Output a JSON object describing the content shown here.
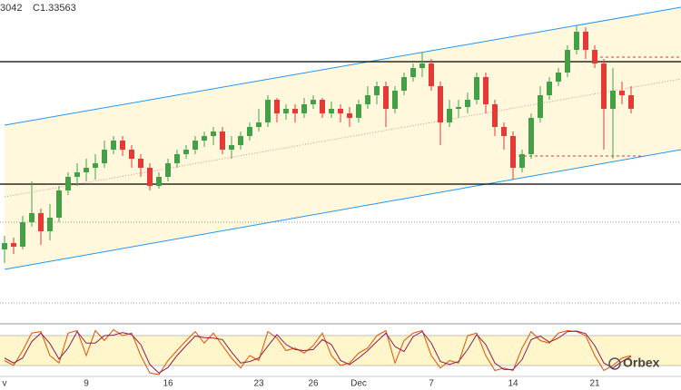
{
  "chart_data": {
    "type": "candlestick",
    "header": [
      "3042",
      "C1.33563"
    ],
    "watermark": "Orbex",
    "categories": [
      "v",
      null,
      null,
      null,
      null,
      null,
      null,
      null,
      null,
      "9",
      null,
      null,
      null,
      null,
      null,
      null,
      null,
      null,
      "16",
      null,
      null,
      null,
      null,
      null,
      null,
      null,
      null,
      null,
      "23",
      null,
      null,
      null,
      null,
      null,
      "26",
      null,
      null,
      null,
      null,
      "Dec",
      null,
      null,
      null,
      null,
      null,
      null,
      null,
      "7",
      null,
      null,
      null,
      null,
      null,
      null,
      null,
      null,
      "14",
      null,
      null,
      null,
      null,
      null,
      null,
      null,
      null,
      "21",
      null,
      null,
      null,
      null
    ],
    "open": [
      1.2891,
      1.2912,
      1.29,
      1.2981,
      1.3011,
      1.2951,
      1.2996,
      1.3086,
      1.3131,
      1.3146,
      1.3161,
      1.3176,
      1.3221,
      1.3251,
      1.3221,
      1.3191,
      1.3161,
      1.3101,
      1.3131,
      1.3176,
      1.3206,
      1.3221,
      1.3251,
      1.3266,
      1.3281,
      1.3221,
      1.3236,
      1.3266,
      1.3296,
      1.3311,
      1.3386,
      1.3341,
      1.3356,
      1.3341,
      1.3371,
      1.3386,
      1.3341,
      1.3356,
      1.3341,
      1.3326,
      1.3371,
      1.3401,
      1.3431,
      1.3356,
      1.3416,
      1.3461,
      1.3491,
      1.3506,
      1.3431,
      1.3311,
      1.3356,
      1.3362,
      1.3386,
      1.3461,
      1.3371,
      1.3296,
      1.3266,
      1.3161,
      1.3206,
      1.3326,
      1.3401,
      1.3446,
      1.3476,
      1.3551,
      1.3611,
      1.3551,
      1.3506,
      1.3356,
      1.3416,
      1.3401
    ],
    "high": [
      1.2936,
      1.293,
      1.3002,
      1.3116,
      1.3026,
      1.3041,
      1.3101,
      1.3146,
      1.3176,
      1.3191,
      1.3206,
      1.3251,
      1.3266,
      1.3266,
      1.3236,
      1.3206,
      1.3176,
      1.3146,
      1.3191,
      1.3221,
      1.3236,
      1.3266,
      1.3281,
      1.3296,
      1.3296,
      1.3266,
      1.3281,
      1.3311,
      1.3356,
      1.3401,
      1.3392,
      1.3371,
      1.3371,
      1.3392,
      1.3401,
      1.3392,
      1.338,
      1.3371,
      1.3362,
      1.3386,
      1.3431,
      1.3446,
      1.3446,
      1.3431,
      1.3476,
      1.3506,
      1.3542,
      1.3521,
      1.3446,
      1.3386,
      1.3386,
      1.341,
      1.3476,
      1.3476,
      1.3386,
      1.3311,
      1.3281,
      1.3221,
      1.3341,
      1.3431,
      1.3461,
      1.3491,
      1.3566,
      1.3632,
      1.3626,
      1.3566,
      1.3521,
      1.3491,
      1.3446,
      1.3431
    ],
    "low": [
      1.2846,
      1.2876,
      1.2891,
      1.2966,
      1.2906,
      1.2921,
      1.2981,
      1.3071,
      1.3101,
      1.3116,
      1.3122,
      1.3161,
      1.3206,
      1.32,
      1.3161,
      1.3131,
      1.3086,
      1.3092,
      1.3116,
      1.3161,
      1.3191,
      1.3206,
      1.323,
      1.3236,
      1.3206,
      1.3191,
      1.3221,
      1.3251,
      1.3281,
      1.3296,
      1.3311,
      1.332,
      1.3311,
      1.3326,
      1.3356,
      1.3326,
      1.3326,
      1.3311,
      1.3296,
      1.3311,
      1.3356,
      1.3371,
      1.3296,
      1.3341,
      1.3401,
      1.3446,
      1.3461,
      1.3416,
      1.3236,
      1.3296,
      1.3326,
      1.3341,
      1.3371,
      1.3341,
      1.3266,
      1.3221,
      1.3122,
      1.3146,
      1.3191,
      1.3311,
      1.3386,
      1.3431,
      1.3461,
      1.3536,
      1.3521,
      1.3491,
      1.3221,
      1.3191,
      1.3371,
      1.3341
    ],
    "close": [
      1.2912,
      1.29,
      1.2981,
      1.3011,
      1.2951,
      1.2996,
      1.3086,
      1.3131,
      1.3146,
      1.3161,
      1.3176,
      1.3221,
      1.3251,
      1.3221,
      1.3191,
      1.3161,
      1.3101,
      1.3131,
      1.3176,
      1.3206,
      1.3221,
      1.3251,
      1.3266,
      1.3281,
      1.3221,
      1.3236,
      1.3266,
      1.3296,
      1.3311,
      1.3386,
      1.3341,
      1.3356,
      1.3341,
      1.3371,
      1.3386,
      1.3341,
      1.3356,
      1.3341,
      1.3326,
      1.3371,
      1.3401,
      1.3431,
      1.3356,
      1.3416,
      1.3461,
      1.3491,
      1.3506,
      1.3431,
      1.3311,
      1.3356,
      1.3362,
      1.3386,
      1.3461,
      1.3371,
      1.3296,
      1.3266,
      1.3161,
      1.3206,
      1.3326,
      1.3401,
      1.3446,
      1.3476,
      1.3551,
      1.3611,
      1.3551,
      1.3506,
      1.3356,
      1.3416,
      1.3401,
      1.33563
    ],
    "up_color": "#43a047",
    "down_color": "#e53935",
    "ylim": [
      1.2666,
      1.3716
    ],
    "levels": [
      {
        "value": 1.3512,
        "style": "solid"
      },
      {
        "value": 1.3107,
        "style": "solid"
      },
      {
        "value": 1.2981,
        "style": "dotted"
      },
      {
        "value": 1.2714,
        "style": "dotted"
      }
    ],
    "oscillator": {
      "ylim": [
        0,
        100
      ],
      "bands": [
        20,
        80
      ],
      "series": [
        {
          "color": "#e65100",
          "values": [
            30,
            20,
            50,
            85,
            88,
            40,
            25,
            85,
            90,
            40,
            90,
            70,
            92,
            80,
            85,
            40,
            5,
            2,
            30,
            50,
            70,
            88,
            65,
            85,
            60,
            35,
            15,
            40,
            30,
            88,
            75,
            50,
            55,
            45,
            60,
            85,
            40,
            20,
            25,
            45,
            55,
            80,
            90,
            25,
            70,
            85,
            90,
            40,
            15,
            30,
            25,
            80,
            85,
            40,
            10,
            15,
            10,
            55,
            88,
            70,
            65,
            85,
            90,
            88,
            80,
            40,
            10,
            20,
            35,
            40
          ]
        },
        {
          "color": "#8e1b5a",
          "values": [
            35,
            25,
            35,
            68,
            85,
            64,
            33,
            55,
            88,
            65,
            65,
            80,
            81,
            86,
            82,
            62,
            22,
            5,
            16,
            40,
            60,
            79,
            76,
            75,
            72,
            47,
            25,
            28,
            35,
            59,
            82,
            62,
            52,
            50,
            52,
            72,
            62,
            30,
            22,
            35,
            50,
            68,
            85,
            58,
            48,
            78,
            88,
            65,
            28,
            22,
            28,
            52,
            82,
            62,
            25,
            12,
            12,
            32,
            72,
            79,
            67,
            75,
            88,
            89,
            84,
            60,
            25,
            15,
            28,
            38
          ]
        }
      ]
    }
  }
}
